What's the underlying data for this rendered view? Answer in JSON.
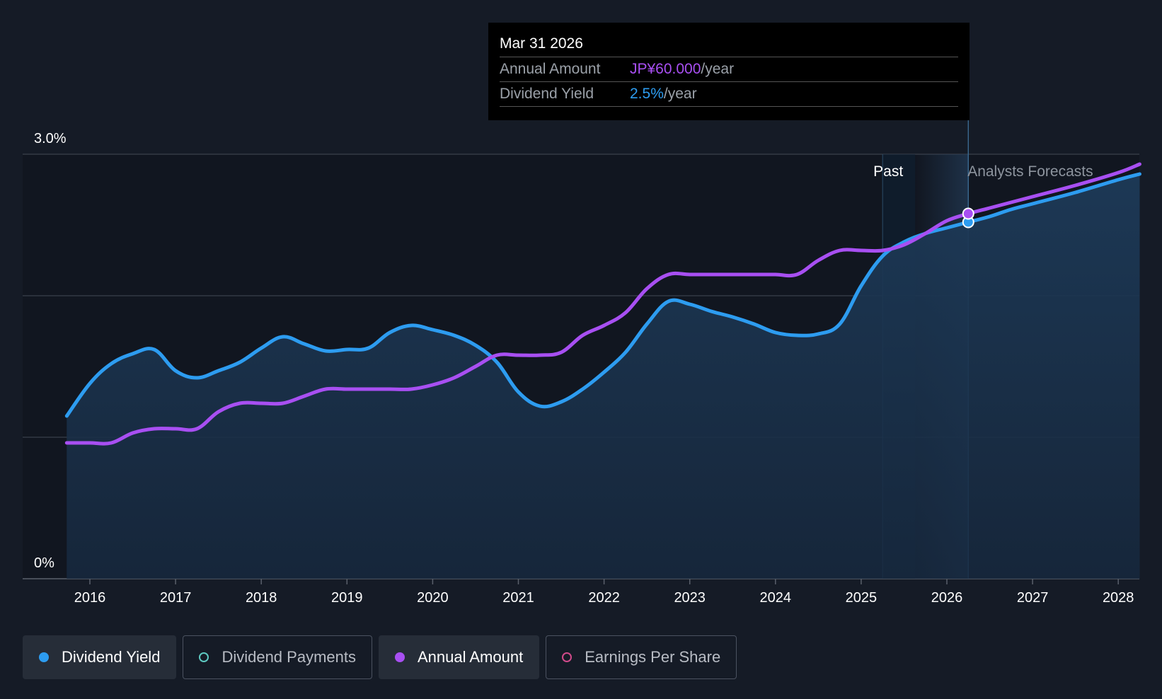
{
  "tooltip": {
    "date": "Mar 31 2026",
    "rows": [
      {
        "label": "Annual Amount",
        "value": "JP¥60.000",
        "unit": "/year",
        "color": "#a84ff2"
      },
      {
        "label": "Dividend Yield",
        "value": "2.5%",
        "unit": "/year",
        "color": "#2d9cf0"
      }
    ]
  },
  "legend": [
    {
      "label": "Dividend Yield",
      "color": "#2d9cf0",
      "filled": true,
      "active": true
    },
    {
      "label": "Dividend Payments",
      "color": "#5ec9c1",
      "filled": false,
      "active": false
    },
    {
      "label": "Annual Amount",
      "color": "#a84ff2",
      "filled": true,
      "active": true
    },
    {
      "label": "Earnings Per Share",
      "color": "#d04a8a",
      "filled": false,
      "active": false
    }
  ],
  "chart_data": {
    "type": "line",
    "title": "",
    "ylim": [
      0,
      3.0
    ],
    "ylabel_ticks": [
      "3.0%",
      "0%"
    ],
    "x_ticks": [
      "2016",
      "2017",
      "2018",
      "2019",
      "2020",
      "2021",
      "2022",
      "2023",
      "2024",
      "2025",
      "2026",
      "2027",
      "2028"
    ],
    "past_label": "Past",
    "forecast_label": "Analysts Forecasts",
    "past_end": 2025.25,
    "forecast_start": 2025.63,
    "highlight": 2026.25,
    "series": [
      {
        "name": "Dividend Yield",
        "color": "#2d9cf0",
        "x": [
          2015.73,
          2016.0,
          2016.25,
          2016.5,
          2016.75,
          2017.0,
          2017.25,
          2017.5,
          2017.75,
          2018.0,
          2018.25,
          2018.5,
          2018.75,
          2019.0,
          2019.25,
          2019.5,
          2019.75,
          2020.0,
          2020.25,
          2020.5,
          2020.75,
          2021.0,
          2021.25,
          2021.5,
          2021.75,
          2022.0,
          2022.25,
          2022.5,
          2022.75,
          2023.0,
          2023.25,
          2023.5,
          2023.75,
          2024.0,
          2024.25,
          2024.5,
          2024.75,
          2025.0,
          2025.25,
          2025.5,
          2025.75,
          2026.0,
          2026.25,
          2026.5,
          2026.75,
          2027.0,
          2027.5,
          2028.0,
          2028.25
        ],
        "values": [
          1.15,
          1.38,
          1.52,
          1.59,
          1.62,
          1.47,
          1.42,
          1.47,
          1.53,
          1.63,
          1.71,
          1.66,
          1.61,
          1.62,
          1.63,
          1.74,
          1.79,
          1.76,
          1.72,
          1.65,
          1.53,
          1.32,
          1.22,
          1.25,
          1.34,
          1.46,
          1.6,
          1.8,
          1.96,
          1.94,
          1.89,
          1.85,
          1.8,
          1.74,
          1.72,
          1.73,
          1.8,
          2.07,
          2.28,
          2.38,
          2.44,
          2.48,
          2.52,
          2.56,
          2.61,
          2.65,
          2.73,
          2.82,
          2.86
        ]
      },
      {
        "name": "Annual Amount",
        "color": "#a84ff2",
        "x": [
          2015.73,
          2016.0,
          2016.25,
          2016.5,
          2016.75,
          2017.0,
          2017.25,
          2017.5,
          2017.75,
          2018.0,
          2018.25,
          2018.5,
          2018.75,
          2019.0,
          2019.25,
          2019.5,
          2019.75,
          2020.0,
          2020.25,
          2020.5,
          2020.75,
          2021.0,
          2021.25,
          2021.5,
          2021.75,
          2022.0,
          2022.25,
          2022.5,
          2022.75,
          2023.0,
          2023.25,
          2023.5,
          2023.75,
          2024.0,
          2024.25,
          2024.5,
          2024.75,
          2025.0,
          2025.25,
          2025.5,
          2025.75,
          2026.0,
          2026.25,
          2026.5,
          2026.75,
          2027.0,
          2027.5,
          2028.0,
          2028.25
        ],
        "values": [
          0.96,
          0.96,
          0.96,
          1.03,
          1.06,
          1.06,
          1.06,
          1.18,
          1.24,
          1.24,
          1.24,
          1.29,
          1.34,
          1.34,
          1.34,
          1.34,
          1.34,
          1.37,
          1.42,
          1.5,
          1.58,
          1.58,
          1.58,
          1.6,
          1.72,
          1.79,
          1.88,
          2.05,
          2.15,
          2.15,
          2.15,
          2.15,
          2.15,
          2.15,
          2.15,
          2.25,
          2.32,
          2.32,
          2.32,
          2.36,
          2.44,
          2.53,
          2.58,
          2.62,
          2.66,
          2.7,
          2.78,
          2.87,
          2.93
        ]
      }
    ]
  }
}
